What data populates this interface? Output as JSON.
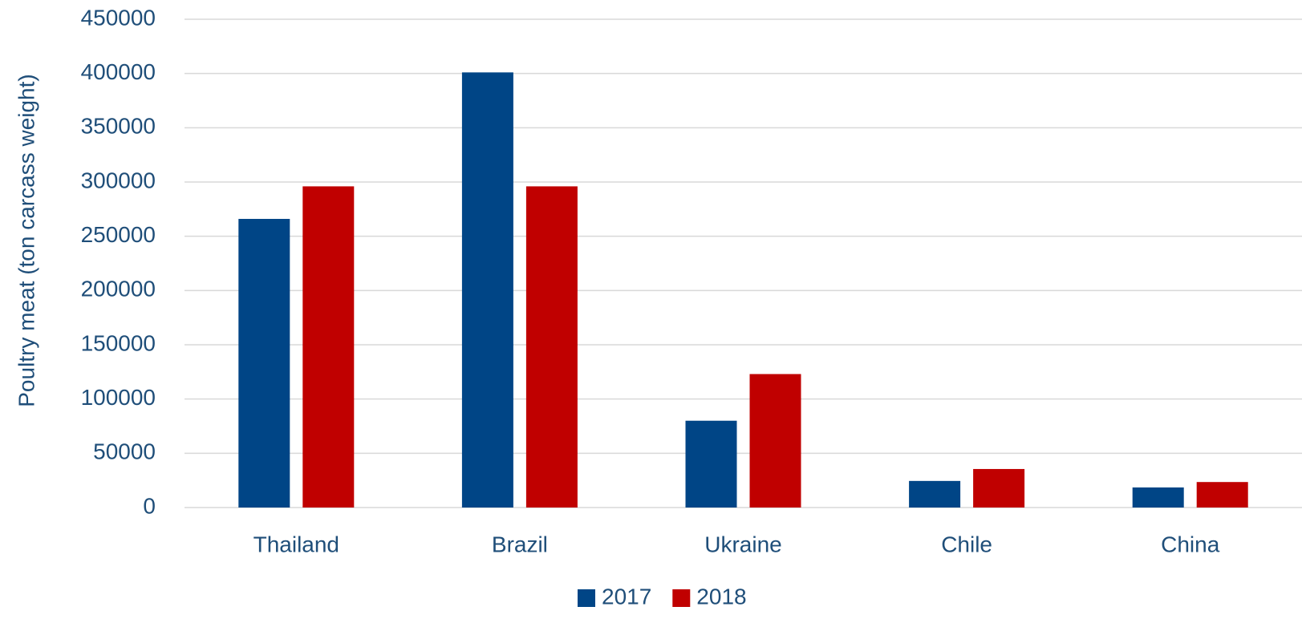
{
  "chart_data": {
    "type": "bar",
    "y_label": "Poultry meat (ton carcass weight)",
    "categories": [
      "Thailand",
      "Brazil",
      "Ukraine",
      "Chile",
      "China"
    ],
    "series": [
      {
        "name": "2017",
        "color": "#004586",
        "values": [
          266000,
          401000,
          80000,
          24500,
          18500
        ]
      },
      {
        "name": "2018",
        "color": "#c00000",
        "values": [
          296000,
          296000,
          123000,
          35500,
          23500
        ]
      }
    ],
    "ylim": [
      0,
      450000
    ],
    "yticks": [
      0,
      50000,
      100000,
      150000,
      200000,
      250000,
      300000,
      350000,
      400000,
      450000
    ],
    "grid": true,
    "legend": "bottom"
  }
}
